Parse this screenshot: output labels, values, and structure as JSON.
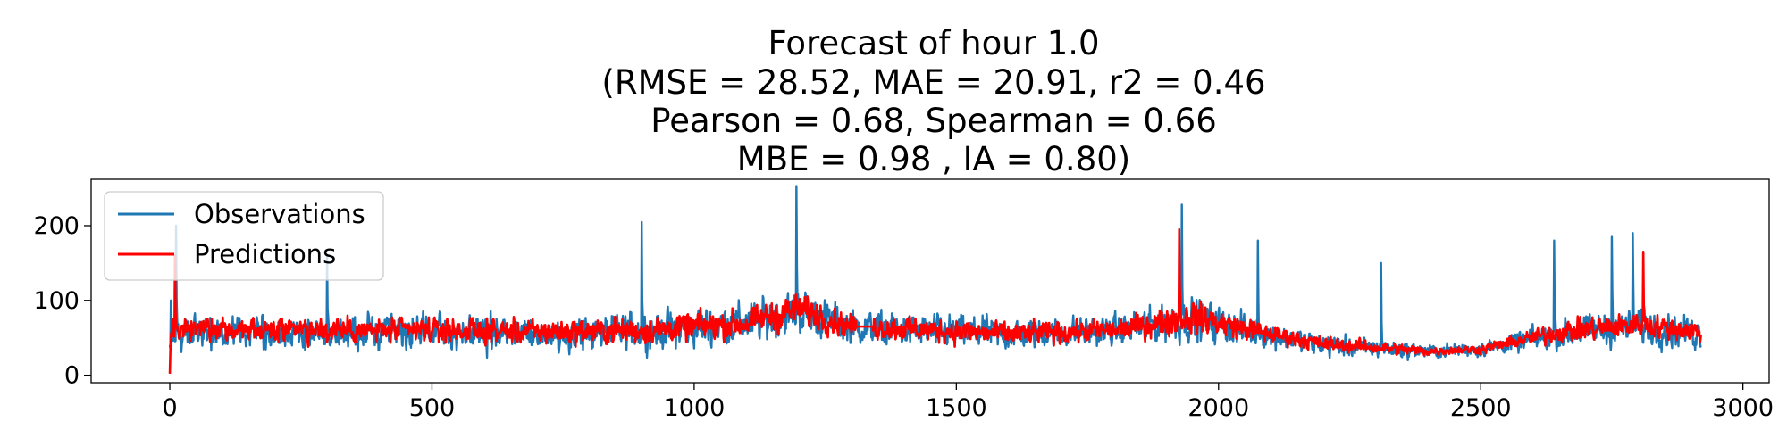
{
  "chart_data": {
    "type": "line",
    "title_lines": [
      "Forecast of hour 1.0",
      "(RMSE = 28.52, MAE = 20.91, r2 = 0.46",
      "Pearson = 0.68, Spearman = 0.66",
      "MBE = 0.98 , IA = 0.80)"
    ],
    "xlabel": "",
    "ylabel": "",
    "xlim": [
      -150,
      3050
    ],
    "ylim": [
      -10,
      262
    ],
    "x_ticks": [
      0,
      500,
      1000,
      1500,
      2000,
      2500,
      3000
    ],
    "y_ticks": [
      0,
      100,
      200
    ],
    "legend": {
      "position": "top-left"
    },
    "grid": false,
    "series": [
      {
        "name": "Observations",
        "color": "#1f77b4",
        "x_range": [
          0,
          2920
        ],
        "profile": [
          [
            0,
            55
          ],
          [
            100,
            55
          ],
          [
            300,
            55
          ],
          [
            500,
            58
          ],
          [
            700,
            55
          ],
          [
            900,
            58
          ],
          [
            1100,
            70
          ],
          [
            1200,
            85
          ],
          [
            1300,
            65
          ],
          [
            1400,
            60
          ],
          [
            1600,
            55
          ],
          [
            1800,
            60
          ],
          [
            1950,
            75
          ],
          [
            2050,
            60
          ],
          [
            2200,
            40
          ],
          [
            2400,
            32
          ],
          [
            2500,
            35
          ],
          [
            2650,
            55
          ],
          [
            2800,
            65
          ],
          [
            2920,
            55
          ]
        ],
        "spread": [
          [
            0,
            45
          ],
          [
            300,
            45
          ],
          [
            600,
            48
          ],
          [
            900,
            50
          ],
          [
            1200,
            60
          ],
          [
            1300,
            45
          ],
          [
            1500,
            45
          ],
          [
            1800,
            40
          ],
          [
            1950,
            60
          ],
          [
            2100,
            35
          ],
          [
            2300,
            25
          ],
          [
            2450,
            18
          ],
          [
            2550,
            25
          ],
          [
            2700,
            45
          ],
          [
            2920,
            45
          ]
        ],
        "peaks": [
          [
            2,
            100
          ],
          [
            12,
            200
          ],
          [
            300,
            160
          ],
          [
            900,
            205
          ],
          [
            1195,
            253
          ],
          [
            1930,
            228
          ],
          [
            2075,
            180
          ],
          [
            2310,
            150
          ],
          [
            2640,
            180
          ],
          [
            2750,
            185
          ],
          [
            2790,
            190
          ]
        ]
      },
      {
        "name": "Predictions",
        "color": "#ff0000",
        "x_range": [
          0,
          2920
        ],
        "flat_segments": [
          [
            1310,
            1340,
            65
          ]
        ],
        "profile": [
          [
            0,
            62
          ],
          [
            100,
            62
          ],
          [
            300,
            60
          ],
          [
            500,
            60
          ],
          [
            700,
            58
          ],
          [
            900,
            60
          ],
          [
            1100,
            70
          ],
          [
            1200,
            88
          ],
          [
            1300,
            65
          ],
          [
            1400,
            62
          ],
          [
            1600,
            55
          ],
          [
            1800,
            60
          ],
          [
            1950,
            78
          ],
          [
            2050,
            62
          ],
          [
            2200,
            42
          ],
          [
            2400,
            32
          ],
          [
            2500,
            35
          ],
          [
            2650,
            58
          ],
          [
            2800,
            68
          ],
          [
            2920,
            58
          ]
        ],
        "spread": [
          [
            0,
            32
          ],
          [
            300,
            32
          ],
          [
            600,
            32
          ],
          [
            900,
            35
          ],
          [
            1200,
            42
          ],
          [
            1300,
            32
          ],
          [
            1500,
            32
          ],
          [
            1800,
            28
          ],
          [
            1950,
            42
          ],
          [
            2100,
            25
          ],
          [
            2300,
            16
          ],
          [
            2450,
            10
          ],
          [
            2550,
            16
          ],
          [
            2700,
            32
          ],
          [
            2920,
            30
          ]
        ],
        "peaks": [
          [
            0,
            2
          ],
          [
            10,
            160
          ],
          [
            1925,
            195
          ],
          [
            2810,
            165
          ]
        ]
      }
    ]
  }
}
